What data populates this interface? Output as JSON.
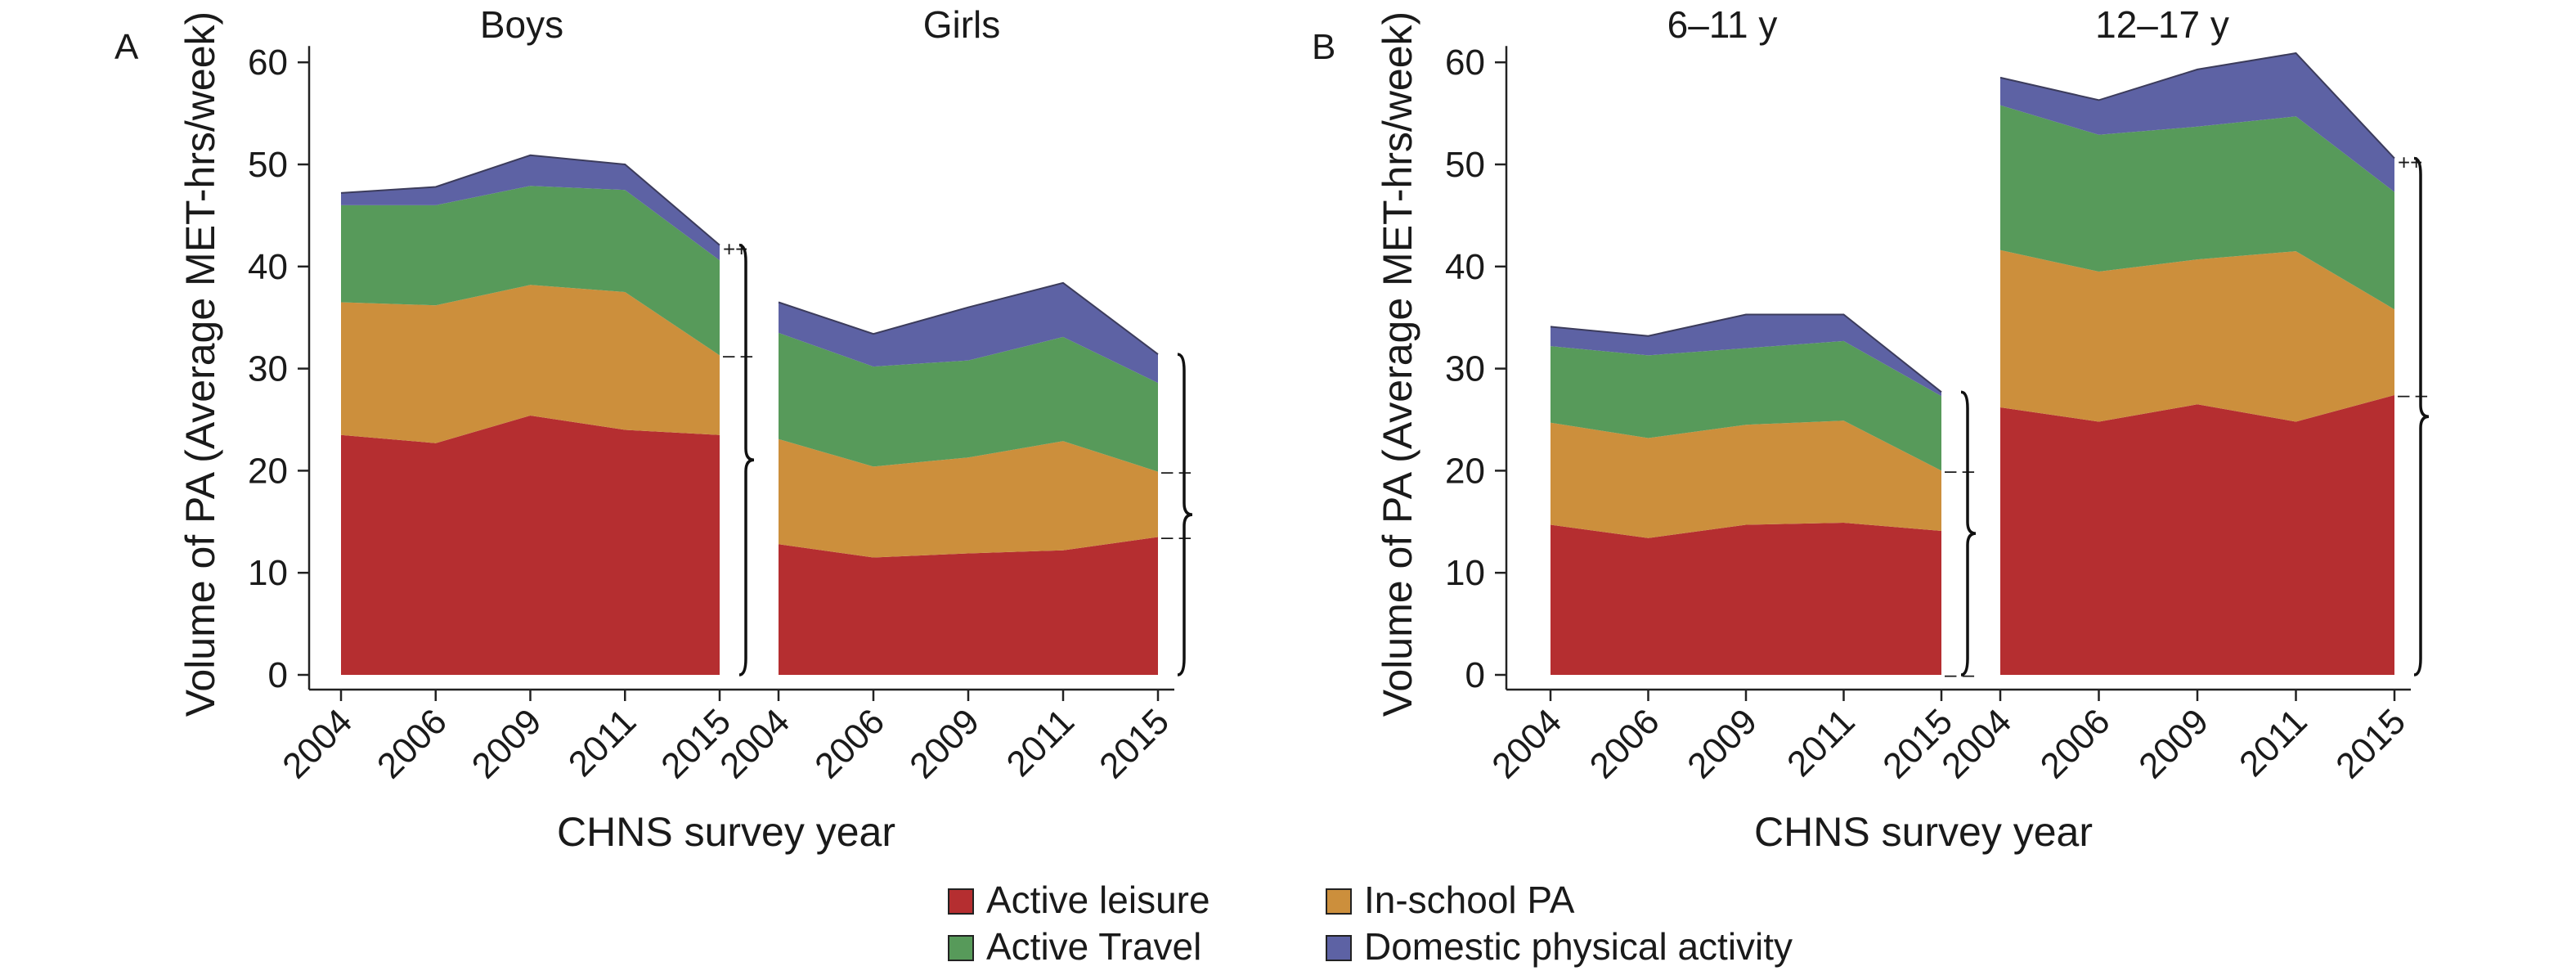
{
  "chart_data": [
    {
      "type": "area",
      "panel_label": "A",
      "ylabel": "Volume of PA (Average MET-hrs/week)",
      "xlabel": "CHNS survey year",
      "ylim": [
        0,
        60
      ],
      "yticks": [
        0,
        10,
        20,
        30,
        40,
        50,
        60
      ],
      "stacked": true,
      "groups": [
        {
          "title": "Boys",
          "x": [
            "2004",
            "2006",
            "2009",
            "2011",
            "2015"
          ],
          "series": [
            {
              "name": "Active leisure",
              "values": [
                23.5,
                22.7,
                25.4,
                24.0,
                23.5
              ]
            },
            {
              "name": "In-school PA",
              "values": [
                13.0,
                13.5,
                12.8,
                13.5,
                7.8
              ]
            },
            {
              "name": "Active Travel",
              "values": [
                9.5,
                9.8,
                9.7,
                10.0,
                9.3
              ]
            },
            {
              "name": "Domestic physical activity",
              "values": [
                1.2,
                1.8,
                3.0,
                2.5,
                1.5
              ]
            }
          ],
          "significance": [
            {
              "series": "Domestic physical activity",
              "mark": "++"
            },
            {
              "series": "Active Travel",
              "mark": "– –"
            }
          ]
        },
        {
          "title": "Girls",
          "x": [
            "2004",
            "2006",
            "2009",
            "2011",
            "2015"
          ],
          "series": [
            {
              "name": "Active leisure",
              "values": [
                12.8,
                11.5,
                11.9,
                12.2,
                13.5
              ]
            },
            {
              "name": "In-school PA",
              "values": [
                10.3,
                8.9,
                9.4,
                10.7,
                6.4
              ]
            },
            {
              "name": "Active Travel",
              "values": [
                10.4,
                9.8,
                9.5,
                10.2,
                8.7
              ]
            },
            {
              "name": "Domestic physical activity",
              "values": [
                3.0,
                3.2,
                5.2,
                5.3,
                2.8
              ]
            }
          ],
          "significance": [
            {
              "series": "Active Travel",
              "mark": "– –"
            },
            {
              "series": "In-school PA",
              "mark": "– –"
            }
          ]
        }
      ],
      "between_group_marks": [
        {
          "between": [
            "Boys",
            "Girls"
          ],
          "mark": "–"
        },
        {
          "between": [
            "Boys",
            "Girls"
          ],
          "mark": "–"
        }
      ]
    },
    {
      "type": "area",
      "panel_label": "B",
      "ylabel": "Volume of PA (Average MET-hrs/week)",
      "xlabel": "CHNS survey year",
      "ylim": [
        0,
        60
      ],
      "yticks": [
        0,
        10,
        20,
        30,
        40,
        50,
        60
      ],
      "stacked": true,
      "groups": [
        {
          "title": "6–11 y",
          "x": [
            "2004",
            "2006",
            "2009",
            "2011",
            "2015"
          ],
          "series": [
            {
              "name": "Active leisure",
              "values": [
                14.7,
                13.4,
                14.7,
                14.9,
                14.1
              ]
            },
            {
              "name": "In-school PA",
              "values": [
                10.0,
                9.8,
                9.8,
                10.0,
                5.9
              ]
            },
            {
              "name": "Active Travel",
              "values": [
                7.5,
                8.1,
                7.5,
                7.8,
                7.3
              ]
            },
            {
              "name": "Domestic physical activity",
              "values": [
                1.9,
                1.9,
                3.3,
                2.6,
                0.4
              ]
            }
          ],
          "significance": [
            {
              "series": "Active Travel",
              "mark": "– –"
            },
            {
              "series": "Active leisure",
              "mark": "– –"
            }
          ]
        },
        {
          "title": "12–17 y",
          "x": [
            "2004",
            "2006",
            "2009",
            "2011",
            "2015"
          ],
          "series": [
            {
              "name": "Active leisure",
              "values": [
                26.2,
                24.8,
                26.5,
                24.8,
                27.4
              ]
            },
            {
              "name": "In-school PA",
              "values": [
                15.4,
                14.7,
                14.2,
                16.7,
                8.4
              ]
            },
            {
              "name": "Active Travel",
              "values": [
                14.2,
                13.4,
                13.0,
                13.2,
                11.5
              ]
            },
            {
              "name": "Domestic physical activity",
              "values": [
                2.7,
                3.4,
                5.6,
                6.2,
                3.3
              ]
            }
          ],
          "significance": [
            {
              "series": "Domestic physical activity",
              "mark": "++"
            },
            {
              "series": "In-school PA",
              "mark": "– –"
            }
          ]
        }
      ],
      "between_group_marks": [
        {
          "between": [
            "6–11 y",
            "12–17 y"
          ],
          "mark": "– –"
        }
      ]
    }
  ],
  "legend": {
    "items": [
      {
        "name": "Active leisure",
        "color": "#b52e30"
      },
      {
        "name": "In-school PA",
        "color": "#cc8f3c"
      },
      {
        "name": "Active Travel",
        "color": "#579a5a"
      },
      {
        "name": "Domestic physical activity",
        "color": "#5d62a4"
      }
    ],
    "placement": "bottom-center"
  },
  "colors": {
    "Active leisure": "#b52e30",
    "In-school PA": "#cc8f3c",
    "Active Travel": "#579a5a",
    "Domestic physical activity": "#5d62a4"
  }
}
